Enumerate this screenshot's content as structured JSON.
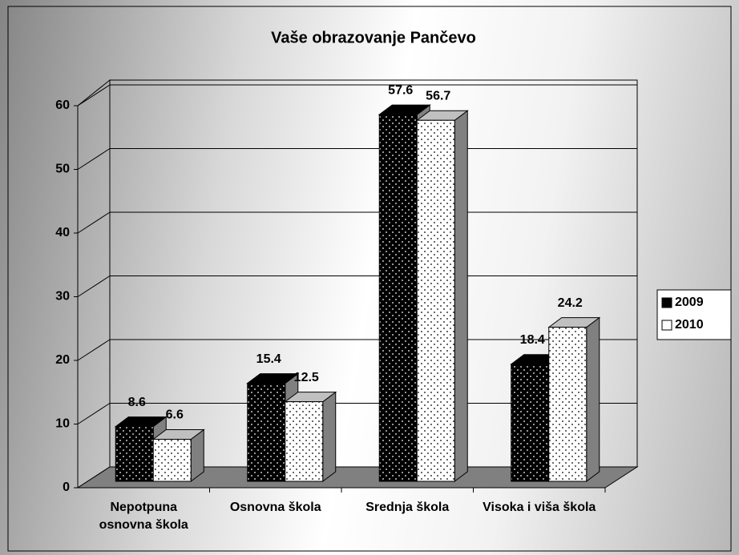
{
  "chart_data": {
    "type": "bar3d",
    "title": "Vaše obrazovanje Pančevo",
    "categories": [
      "Nepotpuna osnovna škola",
      "Osnovna škola",
      "Srednja škola",
      "Visoka i viša škola"
    ],
    "series": [
      {
        "name": "2009",
        "color": "#000000",
        "values": [
          8.6,
          15.4,
          57.6,
          18.4
        ]
      },
      {
        "name": "2010",
        "color": "#ffffff",
        "values": [
          6.6,
          12.5,
          56.7,
          24.2
        ]
      }
    ],
    "ylim": [
      0,
      60
    ],
    "yticks": [
      0,
      10,
      20,
      30,
      40,
      50,
      60
    ],
    "grid": true,
    "legend": "right"
  }
}
